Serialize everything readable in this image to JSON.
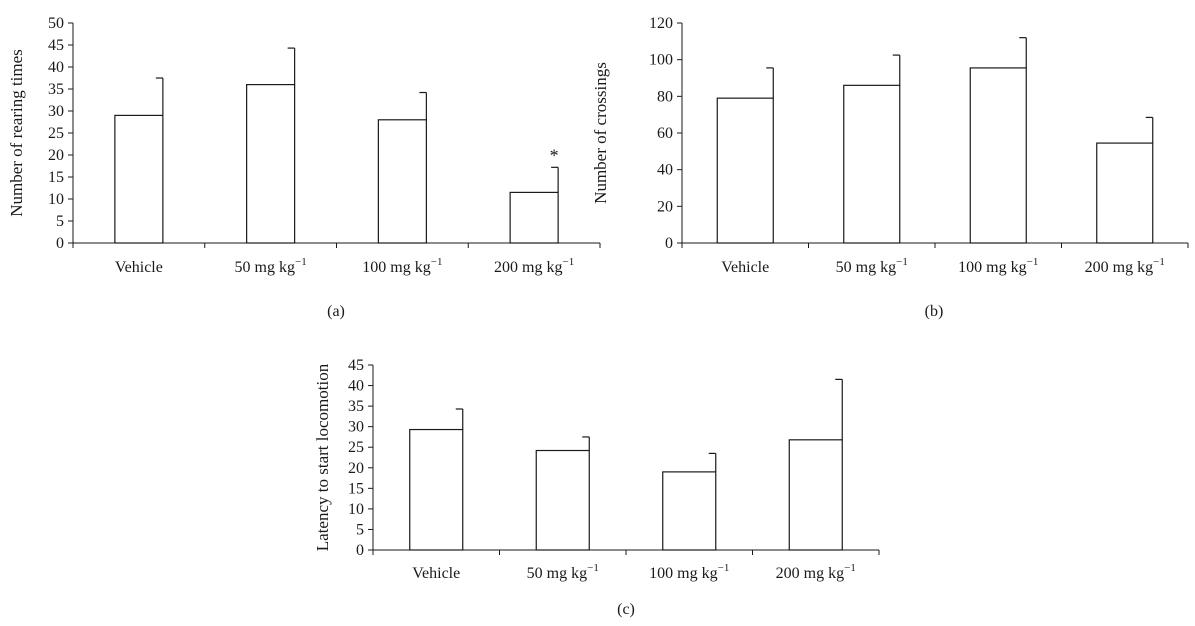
{
  "chart_data": [
    {
      "type": "bar",
      "panel_label": "(a)",
      "categories": [
        "Vehicle",
        "50 mg kg",
        "100 mg kg",
        "200 mg kg"
      ],
      "category_superscripts": [
        "",
        "−1",
        "−1",
        "−1"
      ],
      "values": [
        29,
        36,
        28,
        11.5
      ],
      "errors": [
        8.5,
        8.3,
        6.2,
        5.7
      ],
      "annotations": [
        "",
        "",
        "",
        "*"
      ],
      "ylabel": "Number of rearing times",
      "xlabel": "",
      "title": "",
      "ylim": [
        0,
        50
      ],
      "yticks": [
        0,
        5,
        10,
        15,
        20,
        25,
        30,
        35,
        40,
        45,
        50
      ],
      "grid": false,
      "legend": "none"
    },
    {
      "type": "bar",
      "panel_label": "(b)",
      "categories": [
        "Vehicle",
        "50 mg kg",
        "100 mg kg",
        "200 mg kg"
      ],
      "category_superscripts": [
        "",
        "−1",
        "−1",
        "−1"
      ],
      "values": [
        79,
        86,
        95.5,
        54.5
      ],
      "errors": [
        16.5,
        16.5,
        16.5,
        14
      ],
      "annotations": [
        "",
        "",
        "",
        ""
      ],
      "ylabel": "Number of crossings",
      "xlabel": "",
      "title": "",
      "ylim": [
        0,
        120
      ],
      "yticks": [
        0,
        20,
        40,
        60,
        80,
        100,
        120
      ],
      "grid": false,
      "legend": "none"
    },
    {
      "type": "bar",
      "panel_label": "(c)",
      "categories": [
        "Vehicle",
        "50 mg kg",
        "100 mg kg",
        "200 mg kg"
      ],
      "category_superscripts": [
        "",
        "−1",
        "−1",
        "−1"
      ],
      "values": [
        29.3,
        24.2,
        19,
        26.8
      ],
      "errors": [
        5,
        3.3,
        4.5,
        14.7
      ],
      "annotations": [
        "",
        "",
        "",
        ""
      ],
      "ylabel": "Latency to start locomotion",
      "xlabel": "",
      "title": "",
      "ylim": [
        0,
        45
      ],
      "yticks": [
        0,
        5,
        10,
        15,
        20,
        25,
        30,
        35,
        40,
        45
      ],
      "grid": false,
      "legend": "none"
    }
  ]
}
